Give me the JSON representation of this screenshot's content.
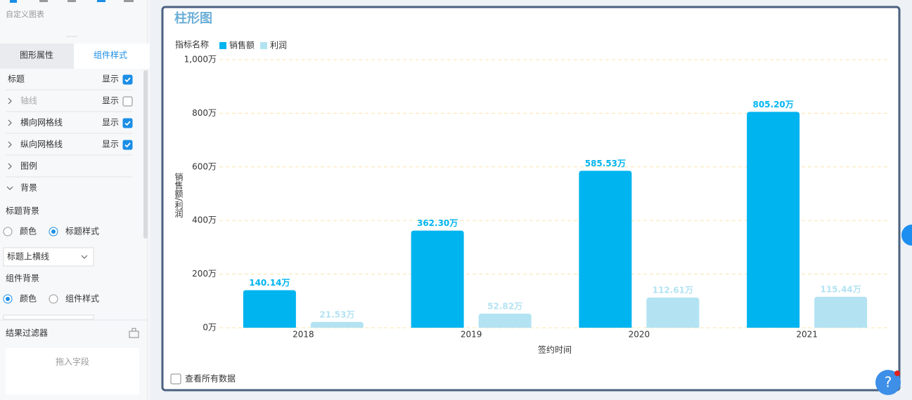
{
  "sidebar": {
    "section_label": "自定义图表",
    "tabs": [
      "图形属性",
      "组件样式"
    ],
    "active_tab": 1,
    "rows": [
      {
        "label": "标题",
        "toggle_label": "显示",
        "checked": true
      },
      {
        "label": "轴线",
        "toggle_label": "显示",
        "checked": false,
        "disabled": true,
        "expanded": false
      },
      {
        "label": "横向网格线",
        "toggle_label": "显示",
        "checked": true,
        "expanded": false
      },
      {
        "label": "纵向网格线",
        "toggle_label": "显示",
        "checked": true,
        "expanded": false
      },
      {
        "label": "图例",
        "expanded": false
      },
      {
        "label": "背景",
        "expanded": true
      }
    ],
    "title_background": {
      "label": "标题背景",
      "options": [
        "颜色",
        "标题样式"
      ],
      "selected": 1,
      "dropdown": "标题上横线"
    },
    "component_background": {
      "label": "组件背景",
      "options": [
        "颜色",
        "组件样式"
      ],
      "selected": 0
    },
    "filter": {
      "label": "结果过滤器",
      "placeholder": "拖入字段"
    }
  },
  "chart_data": {
    "type": "bar",
    "title": "柱形图",
    "legend_title": "指标名称",
    "x_label": "签约时间",
    "y_label": "销售额/利润",
    "categories": [
      "2018",
      "2019",
      "2020",
      "2021"
    ],
    "series": [
      {
        "name": "销售额",
        "color": "#00b4f0",
        "values": [
          140.14,
          362.3,
          585.53,
          805.2
        ],
        "value_labels": [
          "140.14万",
          "362.30万",
          "585.53万",
          "805.20万"
        ]
      },
      {
        "name": "利润",
        "color": "#b3e3f2",
        "values": [
          21.53,
          52.82,
          112.61,
          115.44
        ],
        "value_labels": [
          "21.53万",
          "52.82万",
          "112.61万",
          "115.44万"
        ]
      }
    ],
    "ylim": [
      0,
      1000
    ],
    "yticks": [
      {
        "value": 0,
        "label": "0万"
      },
      {
        "value": 200,
        "label": "200万"
      },
      {
        "value": 400,
        "label": "400万"
      },
      {
        "value": 600,
        "label": "600万"
      },
      {
        "value": 800,
        "label": "800万"
      },
      {
        "value": 1000,
        "label": "1,000万"
      }
    ],
    "grid": true,
    "legend": "top-left"
  },
  "footer_checkbox": "查看所有数据",
  "help_label": "?"
}
